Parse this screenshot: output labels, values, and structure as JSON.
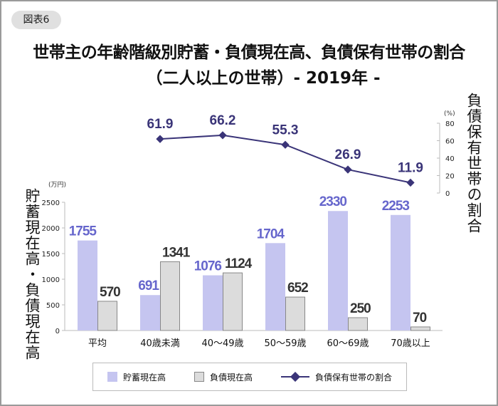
{
  "badge": "図表6",
  "title": "世帯主の年齢階級別貯蓄・負債現在高、負債保有世帯の割合",
  "subtitle": "（二人以上の世帯）- 2019年 -",
  "colors": {
    "savings": "#c5c5f0",
    "savings_label": "#6666cc",
    "debt": "#dcdcdc",
    "debt_border": "#888888",
    "line": "#3a3478"
  },
  "chart_data": {
    "type": "bar+line",
    "categories": [
      "平均",
      "40歳未満",
      "40～49歳",
      "50～59歳",
      "60～69歳",
      "70歳以上"
    ],
    "series": [
      {
        "name": "貯蓄現在高",
        "type": "bar",
        "axis": "left",
        "values": [
          1755,
          691,
          1076,
          1704,
          2330,
          2253
        ]
      },
      {
        "name": "負債現在高",
        "type": "bar",
        "axis": "left",
        "values": [
          570,
          1341,
          1124,
          652,
          250,
          70
        ]
      },
      {
        "name": "負債保有世帯の割合",
        "type": "line",
        "axis": "right",
        "values": [
          null,
          61.9,
          66.2,
          55.3,
          26.9,
          11.9
        ]
      }
    ],
    "left_axis": {
      "label": "貯蓄現在高・負債現在高",
      "unit": "(万円)",
      "ylim": [
        0,
        2500
      ],
      "ticks": [
        0,
        500,
        1000,
        1500,
        2000,
        2500
      ]
    },
    "right_axis": {
      "label": "負債保有世帯の割合",
      "unit": "(%)",
      "ylim": [
        0,
        80
      ],
      "ticks": [
        0,
        20,
        40,
        60,
        80
      ]
    },
    "legend": "bottom"
  }
}
